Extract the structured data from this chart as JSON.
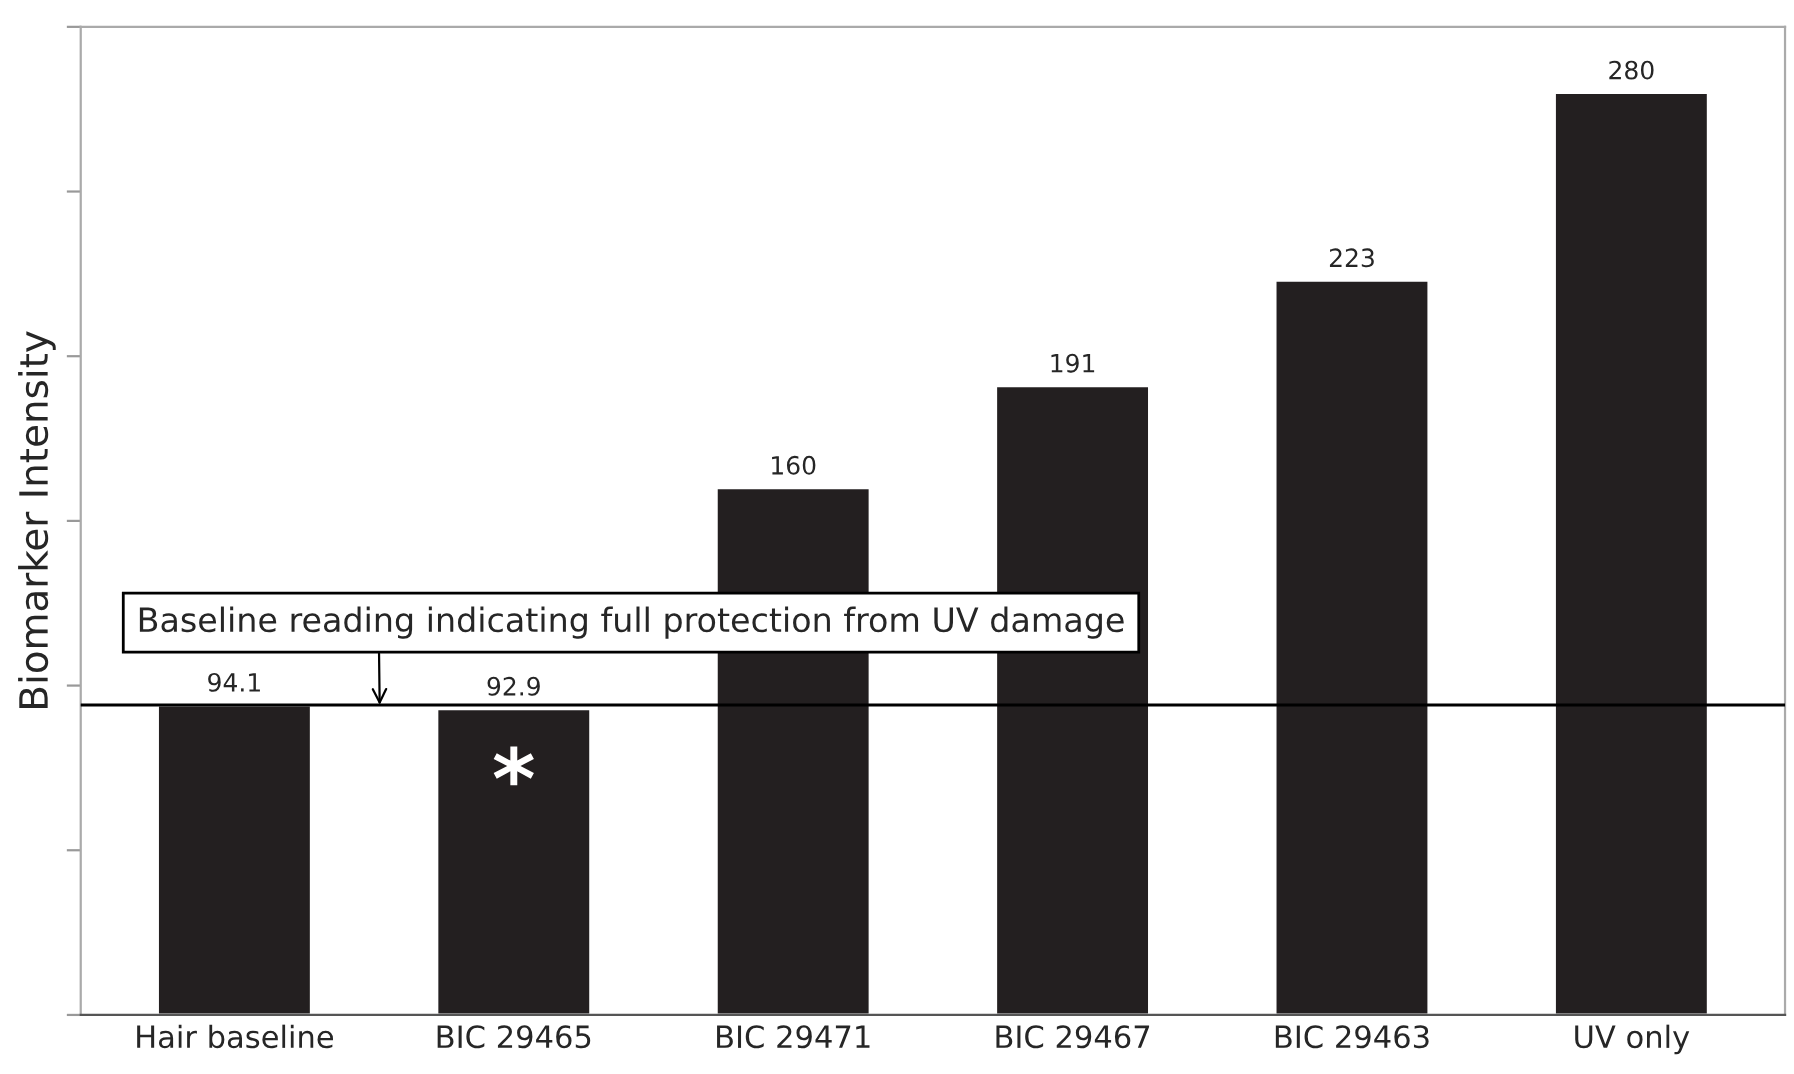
{
  "chart_data": {
    "type": "bar",
    "ylabel": "Biomarker Intensity",
    "categories": [
      "Hair baseline",
      "BIC 29465",
      "BIC 29471",
      "BIC 29467",
      "BIC 29463",
      "UV only"
    ],
    "values": [
      94.1,
      92.9,
      160,
      191,
      223,
      280
    ],
    "color": "#231f20",
    "data_labels": true,
    "ylim": [
      0,
      300
    ],
    "yticks": [
      {
        "value": 0,
        "label": null
      },
      {
        "value": 50,
        "label": null
      },
      {
        "value": 100,
        "label": null
      },
      {
        "value": 150,
        "label": null
      },
      {
        "value": 200,
        "label": null
      },
      {
        "value": 250,
        "label": null
      },
      {
        "value": 300,
        "label": null
      }
    ],
    "tick_labels": "x",
    "grid": false,
    "ref_lines": [
      {
        "axis": "y",
        "value": 94.1,
        "label": "Baseline reading indicating full protection from UV damage",
        "color": "#000000"
      }
    ],
    "annotations": [
      "*"
    ]
  }
}
